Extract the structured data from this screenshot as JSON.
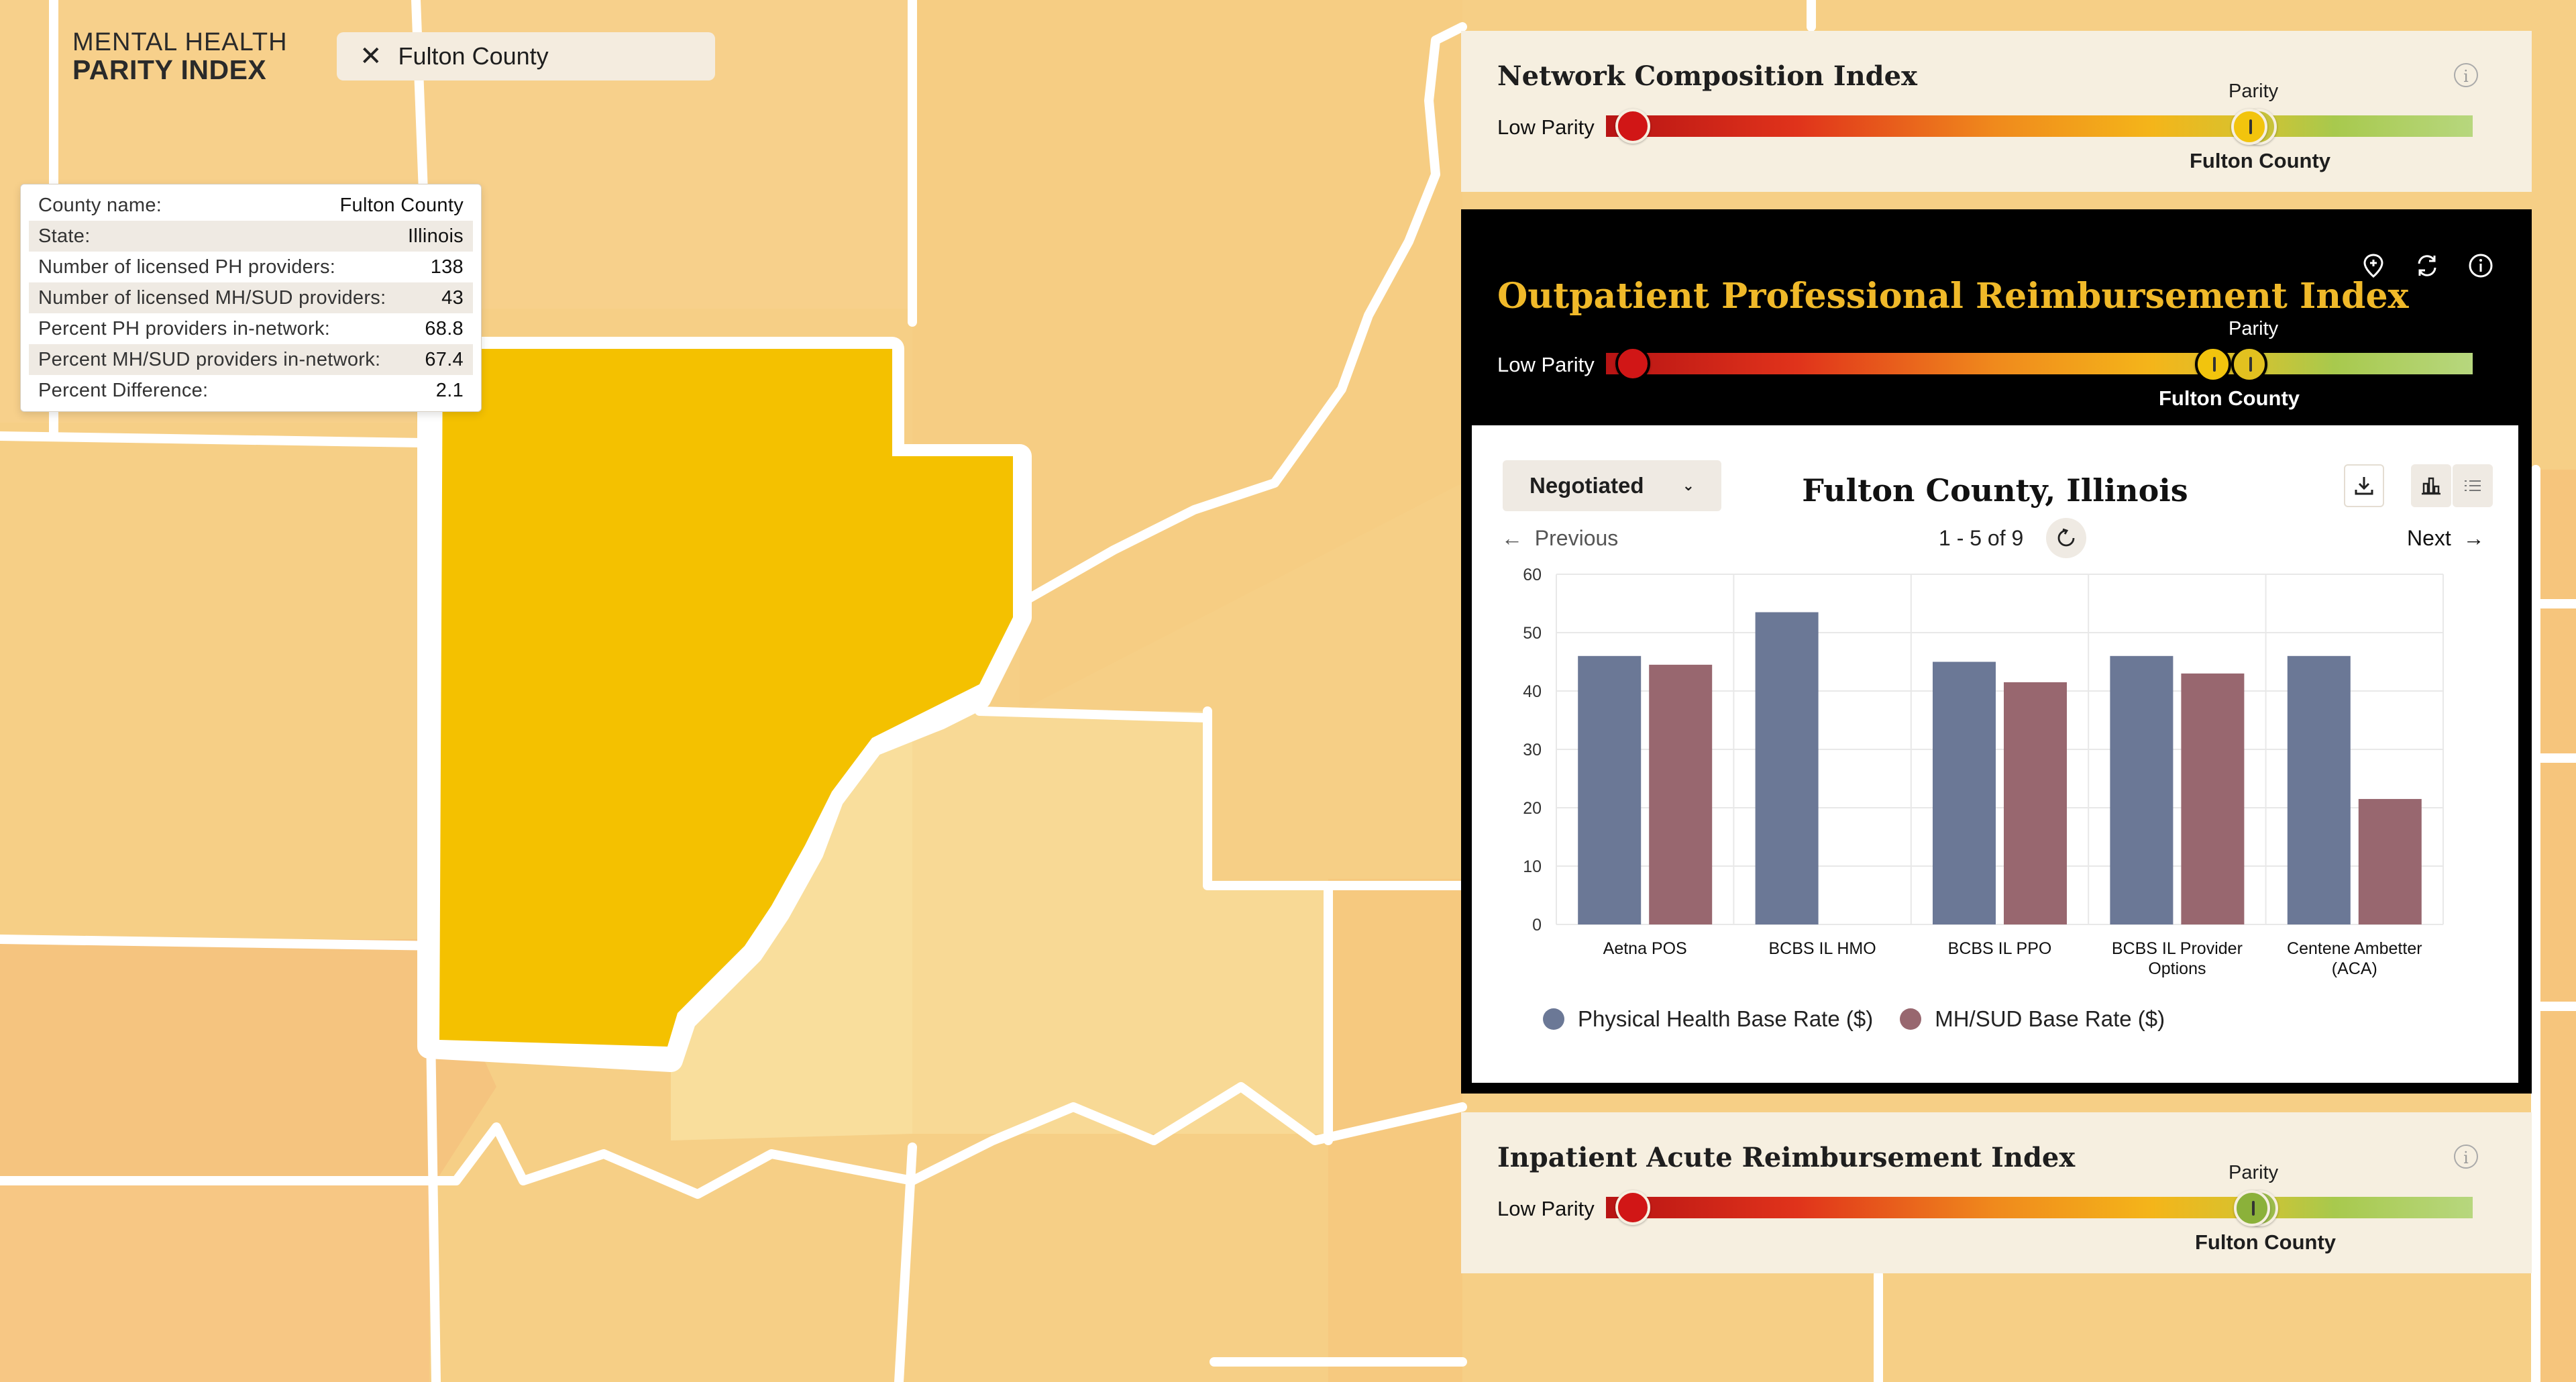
{
  "brand": {
    "line1": "MENTAL HEALTH",
    "line2": "PARITY INDEX"
  },
  "search": {
    "value": "Fulton County",
    "clear_icon": "close-icon",
    "search_icon": "search-icon"
  },
  "tooltip": {
    "rows": [
      {
        "label": "County name:",
        "value": "Fulton County"
      },
      {
        "label": "State:",
        "value": "Illinois"
      },
      {
        "label": "Number of licensed PH providers:",
        "value": "138"
      },
      {
        "label": "Number of licensed MH/SUD providers:",
        "value": "43"
      },
      {
        "label": "Percent PH providers in-network:",
        "value": "68.8"
      },
      {
        "label": "Percent MH/SUD providers in-network:",
        "value": "67.4"
      },
      {
        "label": "Percent Difference:",
        "value": "2.1"
      }
    ]
  },
  "colors": {
    "map_base": "#f6cf86",
    "selected_county": "#f4c100",
    "accent_gold": "#f0b929",
    "ph_series": "#6b7896",
    "mhsud_series": "#98676f",
    "knob_yellow": "#f2c40d",
    "knob_green": "#8bb13a"
  },
  "network": {
    "title": "Network Composition Index",
    "low_label": "Low Parity",
    "parity_label": "Parity",
    "county_label": "Fulton County",
    "county_position_pct": 71.4,
    "parity_position_pct": 71.4
  },
  "outpatient": {
    "title": "Outpatient Professional Reimbursement Index",
    "low_label": "Low Parity",
    "parity_label": "Parity",
    "county_label": "Fulton County",
    "county_position_pct": 67.6,
    "parity_position_pct": 71.4,
    "icons": [
      "add-location-icon",
      "refresh-icon",
      "info-icon"
    ]
  },
  "inpatient": {
    "title": "Inpatient Acute Reimbursement Index",
    "low_label": "Low Parity",
    "parity_label": "Parity",
    "county_label": "Fulton County",
    "county_position_pct": 71.6,
    "parity_position_pct": 71.6
  },
  "card": {
    "select_value": "Negotiated",
    "title": "Fulton County, Illinois",
    "prev_label": "Previous",
    "next_label": "Next",
    "pager": "1 - 5 of 9"
  },
  "chart_data": {
    "type": "bar",
    "categories": [
      "Aetna POS",
      "BCBS IL HMO",
      "BCBS IL PPO",
      "BCBS IL Provider Options",
      "Centene Ambetter (ACA)"
    ],
    "category_lines": [
      [
        "Aetna POS"
      ],
      [
        "BCBS IL HMO"
      ],
      [
        "BCBS IL PPO"
      ],
      [
        "BCBS IL Provider",
        "Options"
      ],
      [
        "Centene Ambetter",
        "(ACA)"
      ]
    ],
    "series": [
      {
        "name": "Physical Health Base Rate ($)",
        "values": [
          46,
          53.5,
          45,
          46,
          46
        ]
      },
      {
        "name": "MH/SUD Base Rate ($)",
        "values": [
          44.5,
          null,
          41.5,
          43,
          21.5
        ]
      }
    ],
    "ylim": [
      0,
      60
    ],
    "yticks": [
      0,
      10,
      20,
      30,
      40,
      50,
      60
    ],
    "grid": true,
    "legend": "bottom"
  }
}
